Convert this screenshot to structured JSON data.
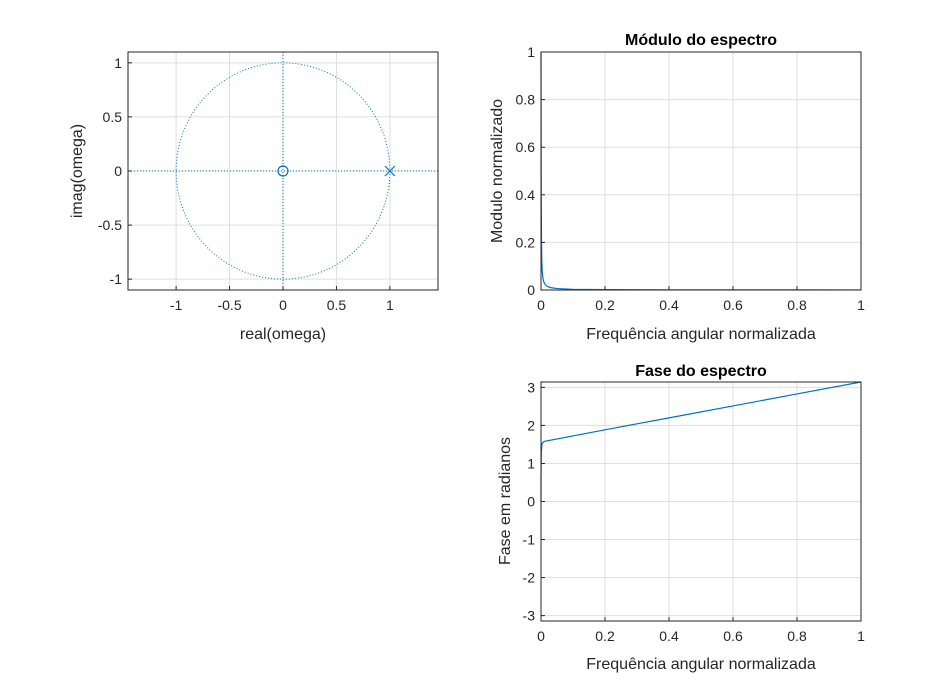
{
  "colors": {
    "series": "#0072bd",
    "axis": "#262626",
    "grid": "#dfdfdf"
  },
  "chart_data": [
    {
      "id": "pz",
      "type": "scatter",
      "title": "",
      "xlabel": "real(omega)",
      "ylabel": "imag(omega)",
      "xlim": [
        -1.45,
        1.45
      ],
      "ylim": [
        -1.1,
        1.1
      ],
      "xticks": [
        "-1",
        "-0.5",
        "0",
        "0.5",
        "1"
      ],
      "yticks": [
        "-1",
        "-0.5",
        "0",
        "0.5",
        "1"
      ],
      "grid": true,
      "series": [
        {
          "marker": "o",
          "points": [
            [
              0,
              0
            ]
          ]
        },
        {
          "marker": "x",
          "points": [
            [
              1,
              0
            ]
          ]
        }
      ],
      "unit_circle": true
    },
    {
      "id": "mag",
      "type": "line",
      "title": "Módulo do espectro",
      "xlabel": "Frequência angular normalizada",
      "ylabel": "Modulo normalizado",
      "xlim": [
        0,
        1
      ],
      "ylim": [
        0,
        1
      ],
      "xticks": [
        "0",
        "0.2",
        "0.4",
        "0.6",
        "0.8",
        "1"
      ],
      "yticks": [
        "0",
        "0.2",
        "0.4",
        "0.6",
        "0.8",
        "1"
      ],
      "grid": true,
      "series": [
        {
          "x": [
            0,
            0.0008,
            0.0015,
            0.0025,
            0.004,
            0.006,
            0.009,
            0.013,
            0.02,
            0.03,
            0.05,
            0.1,
            0.2,
            0.4,
            0.6,
            0.8,
            1
          ],
          "y": [
            1,
            0.4,
            0.21,
            0.12,
            0.075,
            0.05,
            0.033,
            0.023,
            0.015,
            0.01,
            0.006,
            0.003,
            0.0016,
            0.0008,
            0.0005,
            0.0004,
            0.0003
          ]
        }
      ]
    },
    {
      "id": "phase",
      "type": "line",
      "title": "Fase do espectro",
      "xlabel": "Frequência angular normalizada",
      "ylabel": "Fase em radianos",
      "xlim": [
        0,
        1
      ],
      "ylim": [
        -3.1416,
        3.1416
      ],
      "xticks": [
        "0",
        "0.2",
        "0.4",
        "0.6",
        "0.8",
        "1"
      ],
      "yticks": [
        "-3",
        "-2",
        "-1",
        "0",
        "1",
        "2",
        "3"
      ],
      "grid": true,
      "series": [
        {
          "x": [
            0,
            0,
            0.001,
            0.003,
            0.01,
            0.2,
            0.4,
            0.6,
            0.8,
            1
          ],
          "y": [
            0,
            0.6,
            1.3,
            1.52,
            1.58,
            1.885,
            2.199,
            2.513,
            2.827,
            3.1416
          ]
        }
      ]
    }
  ]
}
